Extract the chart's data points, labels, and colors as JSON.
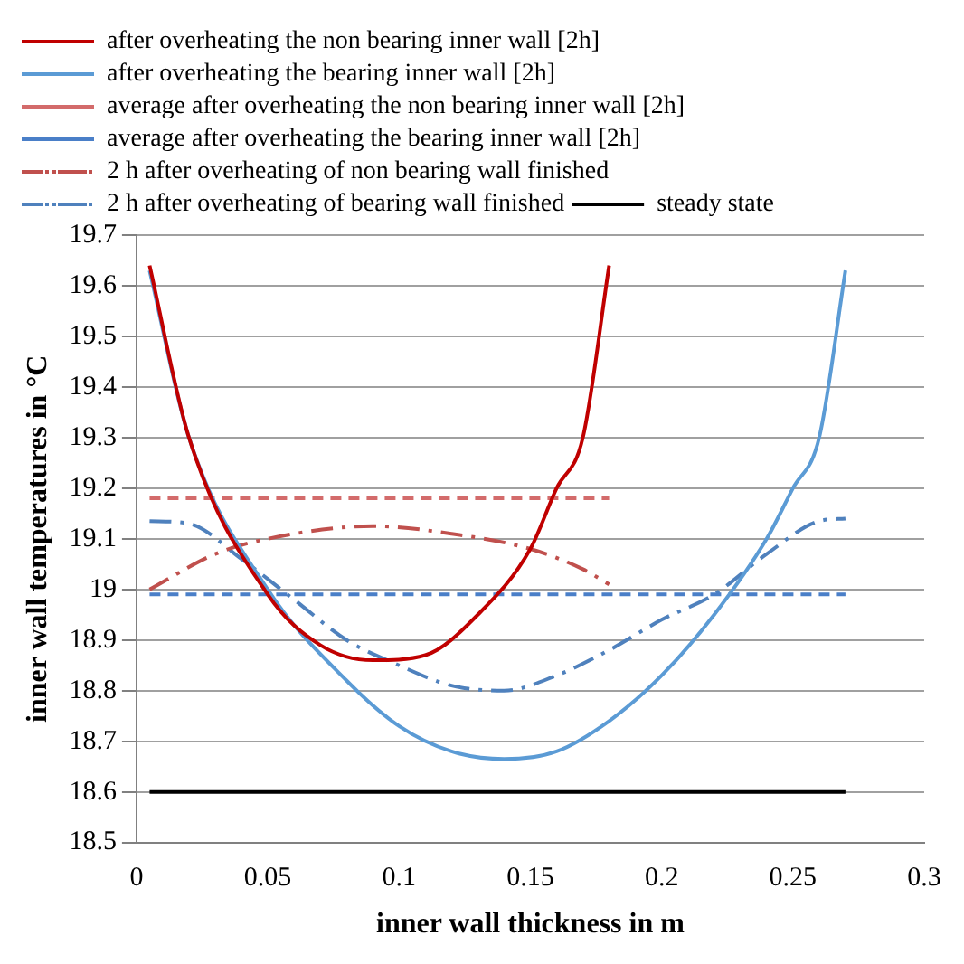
{
  "chart_data": {
    "type": "line",
    "xlabel": "inner wall thickness in m",
    "ylabel": "inner wall temperatures in °C",
    "xlim": [
      0,
      0.3
    ],
    "xticks": [
      0,
      0.05,
      0.1,
      0.15,
      0.2,
      0.25,
      0.3
    ],
    "ylim": [
      18.5,
      19.7
    ],
    "yticks": [
      18.5,
      18.6,
      18.7,
      18.8,
      18.9,
      19,
      19.1,
      19.2,
      19.3,
      19.4,
      19.5,
      19.6,
      19.7
    ],
    "grid": "y",
    "legend": "top",
    "marker": "none",
    "series": [
      {
        "name": "after overheating the non bearing inner wall [2h]",
        "color": "#c00000",
        "line_style": "solid",
        "x": [
          0.005,
          0.02,
          0.05,
          0.07,
          0.09,
          0.11,
          0.13,
          0.15,
          0.16,
          0.17,
          0.18
        ],
        "values": [
          19.64,
          19.3,
          18.99,
          18.89,
          18.86,
          18.87,
          18.95,
          19.08,
          19.2,
          19.3,
          19.64
        ]
      },
      {
        "name": "after overheating the bearing inner wall [2h]",
        "color": "#5b9bd5",
        "line_style": "solid",
        "x": [
          0.005,
          0.02,
          0.05,
          0.08,
          0.1,
          0.12,
          0.14,
          0.16,
          0.18,
          0.2,
          0.22,
          0.24,
          0.25,
          0.26,
          0.27
        ],
        "values": [
          19.63,
          19.3,
          19.0,
          18.82,
          18.73,
          18.68,
          18.665,
          18.68,
          18.74,
          18.83,
          18.95,
          19.1,
          19.2,
          19.3,
          19.63
        ]
      },
      {
        "name": "average after overheating the non bearing inner wall [2h]",
        "color": "#d36b6b",
        "line_style": "dashed",
        "x": [
          0.005,
          0.18
        ],
        "values": [
          19.18,
          19.18
        ]
      },
      {
        "name": "average after overheating the bearing inner wall [2h]",
        "color": "#4a7fc8",
        "line_style": "dashed",
        "x": [
          0.005,
          0.27
        ],
        "values": [
          18.99,
          18.99
        ]
      },
      {
        "name": "2 h after overheating of non bearing wall finished",
        "color": "#c0504d",
        "line_style": "dashdot",
        "x": [
          0.005,
          0.03,
          0.05,
          0.09,
          0.12,
          0.15,
          0.17,
          0.18
        ],
        "values": [
          19.0,
          19.07,
          19.1,
          19.125,
          19.11,
          19.08,
          19.04,
          19.01
        ]
      },
      {
        "name": "2 h after overheating of bearing wall finished",
        "color": "#4f81bd",
        "line_style": "dashdot",
        "x": [
          0.005,
          0.02,
          0.04,
          0.06,
          0.08,
          0.1,
          0.12,
          0.14,
          0.16,
          0.18,
          0.2,
          0.22,
          0.24,
          0.26,
          0.27
        ],
        "values": [
          19.135,
          19.13,
          19.06,
          18.98,
          18.9,
          18.85,
          18.81,
          18.8,
          18.83,
          18.88,
          18.94,
          18.99,
          19.07,
          19.135,
          19.14
        ]
      },
      {
        "name": "steady state",
        "color": "#000000",
        "line_style": "solid",
        "x": [
          0.005,
          0.27
        ],
        "values": [
          18.6,
          18.6
        ]
      }
    ]
  }
}
